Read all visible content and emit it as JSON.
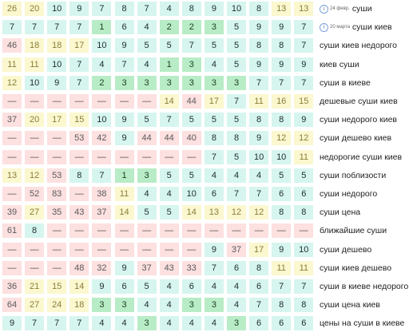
{
  "colors": {
    "r": "#fde0e0",
    "y": "#fbf7cf",
    "t": "#d6f5ef",
    "g": "#b8ecc6"
  },
  "rows": [
    {
      "keyword": "суши",
      "badge": "i",
      "date": "24 февр.",
      "cells": [
        [
          "26",
          "y"
        ],
        [
          "20",
          "y"
        ],
        [
          "10",
          "t"
        ],
        [
          "9",
          "t"
        ],
        [
          "7",
          "t"
        ],
        [
          "8",
          "t"
        ],
        [
          "7",
          "t"
        ],
        [
          "4",
          "t"
        ],
        [
          "8",
          "t"
        ],
        [
          "9",
          "t"
        ],
        [
          "10",
          "t"
        ],
        [
          "8",
          "t"
        ],
        [
          "13",
          "y"
        ],
        [
          "13",
          "y"
        ]
      ]
    },
    {
      "keyword": "суши киев",
      "badge": "i",
      "date": "20 марта",
      "cells": [
        [
          "7",
          "t"
        ],
        [
          "7",
          "t"
        ],
        [
          "7",
          "t"
        ],
        [
          "7",
          "t"
        ],
        [
          "1",
          "g"
        ],
        [
          "6",
          "t"
        ],
        [
          "4",
          "t"
        ],
        [
          "2",
          "g"
        ],
        [
          "2",
          "g"
        ],
        [
          "3",
          "g"
        ],
        [
          "5",
          "t"
        ],
        [
          "9",
          "t"
        ],
        [
          "9",
          "t"
        ],
        [
          "7",
          "t"
        ]
      ]
    },
    {
      "keyword": "суши киев недорого",
      "cells": [
        [
          "46",
          "r"
        ],
        [
          "18",
          "y"
        ],
        [
          "18",
          "y"
        ],
        [
          "17",
          "y"
        ],
        [
          "10",
          "t"
        ],
        [
          "9",
          "t"
        ],
        [
          "5",
          "t"
        ],
        [
          "5",
          "t"
        ],
        [
          "7",
          "t"
        ],
        [
          "5",
          "t"
        ],
        [
          "5",
          "t"
        ],
        [
          "8",
          "t"
        ],
        [
          "8",
          "t"
        ],
        [
          "7",
          "t"
        ]
      ]
    },
    {
      "keyword": "киев суши",
      "cells": [
        [
          "11",
          "y"
        ],
        [
          "11",
          "y"
        ],
        [
          "10",
          "t"
        ],
        [
          "7",
          "t"
        ],
        [
          "4",
          "t"
        ],
        [
          "7",
          "t"
        ],
        [
          "4",
          "t"
        ],
        [
          "1",
          "g"
        ],
        [
          "3",
          "g"
        ],
        [
          "4",
          "t"
        ],
        [
          "5",
          "t"
        ],
        [
          "9",
          "t"
        ],
        [
          "9",
          "t"
        ],
        [
          "9",
          "t"
        ]
      ]
    },
    {
      "keyword": "суши в киеве",
      "cells": [
        [
          "12",
          "y"
        ],
        [
          "10",
          "t"
        ],
        [
          "9",
          "t"
        ],
        [
          "7",
          "t"
        ],
        [
          "2",
          "g"
        ],
        [
          "3",
          "g"
        ],
        [
          "3",
          "g"
        ],
        [
          "3",
          "g"
        ],
        [
          "3",
          "g"
        ],
        [
          "3",
          "g"
        ],
        [
          "3",
          "g"
        ],
        [
          "7",
          "t"
        ],
        [
          "7",
          "t"
        ],
        [
          "7",
          "t"
        ]
      ]
    },
    {
      "keyword": "дешевые суши киев",
      "cells": [
        [
          "—",
          "r"
        ],
        [
          "—",
          "r"
        ],
        [
          "—",
          "r"
        ],
        [
          "—",
          "r"
        ],
        [
          "—",
          "r"
        ],
        [
          "—",
          "r"
        ],
        [
          "—",
          "r"
        ],
        [
          "14",
          "y"
        ],
        [
          "44",
          "r"
        ],
        [
          "17",
          "y"
        ],
        [
          "7",
          "t"
        ],
        [
          "11",
          "y"
        ],
        [
          "16",
          "y"
        ],
        [
          "15",
          "y"
        ]
      ]
    },
    {
      "keyword": "суши недорого киев",
      "cells": [
        [
          "37",
          "r"
        ],
        [
          "20",
          "y"
        ],
        [
          "17",
          "y"
        ],
        [
          "15",
          "y"
        ],
        [
          "10",
          "t"
        ],
        [
          "9",
          "t"
        ],
        [
          "5",
          "t"
        ],
        [
          "7",
          "t"
        ],
        [
          "5",
          "t"
        ],
        [
          "5",
          "t"
        ],
        [
          "5",
          "t"
        ],
        [
          "8",
          "t"
        ],
        [
          "8",
          "t"
        ],
        [
          "9",
          "t"
        ]
      ]
    },
    {
      "keyword": "суши дешево киев",
      "cells": [
        [
          "—",
          "r"
        ],
        [
          "—",
          "r"
        ],
        [
          "—",
          "r"
        ],
        [
          "53",
          "r"
        ],
        [
          "42",
          "r"
        ],
        [
          "9",
          "t"
        ],
        [
          "44",
          "r"
        ],
        [
          "44",
          "r"
        ],
        [
          "40",
          "r"
        ],
        [
          "8",
          "t"
        ],
        [
          "8",
          "t"
        ],
        [
          "9",
          "t"
        ],
        [
          "12",
          "y"
        ],
        [
          "12",
          "y"
        ]
      ]
    },
    {
      "keyword": "недорогие суши киев",
      "cells": [
        [
          "—",
          "r"
        ],
        [
          "—",
          "r"
        ],
        [
          "—",
          "r"
        ],
        [
          "—",
          "r"
        ],
        [
          "—",
          "r"
        ],
        [
          "—",
          "r"
        ],
        [
          "—",
          "r"
        ],
        [
          "—",
          "r"
        ],
        [
          "—",
          "r"
        ],
        [
          "7",
          "t"
        ],
        [
          "5",
          "t"
        ],
        [
          "10",
          "t"
        ],
        [
          "10",
          "t"
        ],
        [
          "11",
          "y"
        ]
      ]
    },
    {
      "keyword": "суши поблизости",
      "cells": [
        [
          "13",
          "y"
        ],
        [
          "12",
          "y"
        ],
        [
          "53",
          "r"
        ],
        [
          "8",
          "t"
        ],
        [
          "7",
          "t"
        ],
        [
          "1",
          "g"
        ],
        [
          "3",
          "g"
        ],
        [
          "5",
          "t"
        ],
        [
          "5",
          "t"
        ],
        [
          "4",
          "t"
        ],
        [
          "4",
          "t"
        ],
        [
          "4",
          "t"
        ],
        [
          "5",
          "t"
        ],
        [
          "5",
          "t"
        ]
      ]
    },
    {
      "keyword": "суши недорого",
      "cells": [
        [
          "—",
          "r"
        ],
        [
          "52",
          "r"
        ],
        [
          "83",
          "r"
        ],
        [
          "—",
          "r"
        ],
        [
          "38",
          "r"
        ],
        [
          "11",
          "y"
        ],
        [
          "4",
          "t"
        ],
        [
          "4",
          "t"
        ],
        [
          "10",
          "t"
        ],
        [
          "6",
          "t"
        ],
        [
          "7",
          "t"
        ],
        [
          "7",
          "t"
        ],
        [
          "6",
          "t"
        ],
        [
          "6",
          "t"
        ]
      ]
    },
    {
      "keyword": "суши цена",
      "cells": [
        [
          "39",
          "r"
        ],
        [
          "27",
          "y"
        ],
        [
          "35",
          "r"
        ],
        [
          "43",
          "r"
        ],
        [
          "37",
          "r"
        ],
        [
          "14",
          "y"
        ],
        [
          "5",
          "t"
        ],
        [
          "5",
          "t"
        ],
        [
          "14",
          "y"
        ],
        [
          "13",
          "y"
        ],
        [
          "12",
          "y"
        ],
        [
          "12",
          "y"
        ],
        [
          "8",
          "t"
        ],
        [
          "8",
          "t"
        ]
      ]
    },
    {
      "keyword": "ближайшие суши",
      "cells": [
        [
          "61",
          "r"
        ],
        [
          "8",
          "t"
        ],
        [
          "—",
          "r"
        ],
        [
          "—",
          "r"
        ],
        [
          "—",
          "r"
        ],
        [
          "—",
          "r"
        ],
        [
          "—",
          "r"
        ],
        [
          "—",
          "r"
        ],
        [
          "—",
          "r"
        ],
        [
          "—",
          "r"
        ],
        [
          "—",
          "r"
        ],
        [
          "—",
          "r"
        ],
        [
          "—",
          "r"
        ],
        [
          "—",
          "r"
        ]
      ]
    },
    {
      "keyword": "суши дешево",
      "cells": [
        [
          "—",
          "r"
        ],
        [
          "—",
          "r"
        ],
        [
          "—",
          "r"
        ],
        [
          "—",
          "r"
        ],
        [
          "—",
          "r"
        ],
        [
          "—",
          "r"
        ],
        [
          "—",
          "r"
        ],
        [
          "—",
          "r"
        ],
        [
          "—",
          "r"
        ],
        [
          "9",
          "t"
        ],
        [
          "37",
          "r"
        ],
        [
          "17",
          "y"
        ],
        [
          "9",
          "t"
        ],
        [
          "10",
          "t"
        ]
      ]
    },
    {
      "keyword": "суши киев дешево",
      "cells": [
        [
          "—",
          "r"
        ],
        [
          "—",
          "r"
        ],
        [
          "—",
          "r"
        ],
        [
          "48",
          "r"
        ],
        [
          "32",
          "r"
        ],
        [
          "9",
          "t"
        ],
        [
          "37",
          "r"
        ],
        [
          "43",
          "r"
        ],
        [
          "33",
          "r"
        ],
        [
          "7",
          "t"
        ],
        [
          "6",
          "t"
        ],
        [
          "8",
          "t"
        ],
        [
          "11",
          "y"
        ],
        [
          "11",
          "y"
        ]
      ]
    },
    {
      "keyword": "суши в киеве недорого",
      "cells": [
        [
          "36",
          "r"
        ],
        [
          "21",
          "y"
        ],
        [
          "15",
          "y"
        ],
        [
          "14",
          "y"
        ],
        [
          "9",
          "t"
        ],
        [
          "6",
          "t"
        ],
        [
          "5",
          "t"
        ],
        [
          "4",
          "t"
        ],
        [
          "6",
          "t"
        ],
        [
          "4",
          "t"
        ],
        [
          "4",
          "t"
        ],
        [
          "6",
          "t"
        ],
        [
          "7",
          "t"
        ],
        [
          "7",
          "t"
        ]
      ]
    },
    {
      "keyword": "суши цена киев",
      "cells": [
        [
          "64",
          "r"
        ],
        [
          "27",
          "y"
        ],
        [
          "24",
          "y"
        ],
        [
          "18",
          "y"
        ],
        [
          "3",
          "g"
        ],
        [
          "3",
          "g"
        ],
        [
          "4",
          "t"
        ],
        [
          "4",
          "t"
        ],
        [
          "3",
          "g"
        ],
        [
          "3",
          "g"
        ],
        [
          "4",
          "t"
        ],
        [
          "7",
          "t"
        ],
        [
          "8",
          "t"
        ],
        [
          "8",
          "t"
        ]
      ]
    },
    {
      "keyword": "цены на суши в киеве",
      "cells": [
        [
          "9",
          "t"
        ],
        [
          "7",
          "t"
        ],
        [
          "7",
          "t"
        ],
        [
          "7",
          "t"
        ],
        [
          "4",
          "t"
        ],
        [
          "4",
          "t"
        ],
        [
          "3",
          "g"
        ],
        [
          "4",
          "t"
        ],
        [
          "4",
          "t"
        ],
        [
          "4",
          "t"
        ],
        [
          "3",
          "g"
        ],
        [
          "6",
          "t"
        ],
        [
          "6",
          "t"
        ],
        [
          "6",
          "t"
        ]
      ]
    }
  ]
}
